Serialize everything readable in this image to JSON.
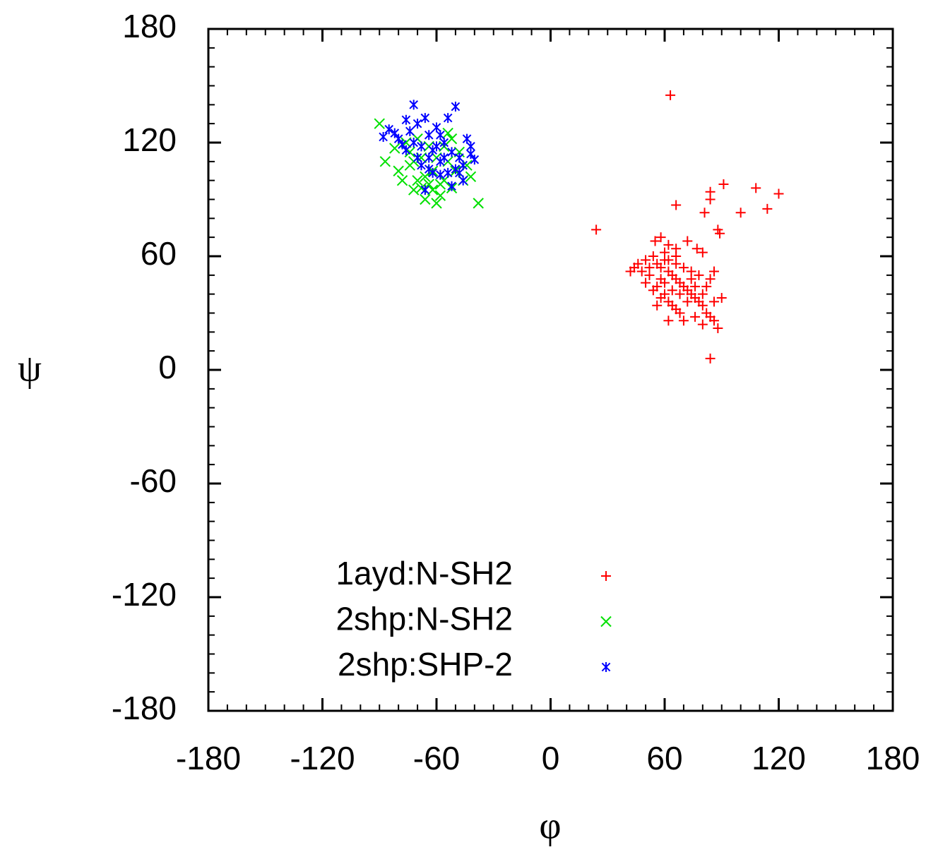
{
  "chart_data": {
    "type": "scatter",
    "x_label": "φ",
    "y_label": "ψ",
    "xlim": [
      -180,
      180
    ],
    "ylim": [
      -180,
      180
    ],
    "xticks": [
      -180,
      -120,
      -60,
      0,
      60,
      120,
      180
    ],
    "yticks": [
      -180,
      -120,
      -60,
      0,
      60,
      120,
      180
    ],
    "grid": false,
    "legend": "lower-left",
    "series": [
      {
        "name": "1ayd:N-SH2",
        "color": "#ff0000",
        "marker": "+",
        "x": [
          63,
          24,
          66,
          84,
          120,
          108,
          114,
          91,
          100,
          84,
          84,
          81,
          88,
          89,
          55,
          58,
          62,
          66,
          72,
          77,
          80,
          60,
          54,
          50,
          46,
          44,
          42,
          48,
          52,
          56,
          58,
          62,
          64,
          66,
          68,
          70,
          72,
          74,
          76,
          78,
          80,
          82,
          84,
          86,
          88,
          90,
          86,
          82,
          84,
          86,
          78,
          74,
          70,
          66,
          62,
          58,
          56,
          60,
          62,
          64,
          66,
          68,
          70,
          62,
          76,
          80,
          58,
          54,
          56,
          60,
          64,
          68,
          72,
          74,
          76,
          80,
          50,
          52,
          60,
          66
        ],
        "values": [
          145,
          74,
          87,
          6,
          93,
          96,
          85,
          98,
          83,
          94,
          90,
          83,
          74,
          72,
          68,
          70,
          66,
          64,
          68,
          64,
          62,
          62,
          60,
          58,
          56,
          54,
          52,
          52,
          50,
          56,
          54,
          52,
          50,
          48,
          46,
          44,
          42,
          40,
          38,
          36,
          34,
          30,
          28,
          26,
          22,
          38,
          36,
          44,
          48,
          52,
          50,
          52,
          54,
          56,
          58,
          48,
          44,
          40,
          36,
          34,
          32,
          30,
          26,
          26,
          28,
          24,
          38,
          42,
          34,
          46,
          42,
          40,
          36,
          48,
          44,
          40,
          46,
          54,
          58,
          60
        ]
      },
      {
        "name": "2shp:N-SH2",
        "color": "#00e000",
        "marker": "x",
        "x": [
          -90,
          -87,
          -82,
          -80,
          -78,
          -76,
          -74,
          -72,
          -70,
          -68,
          -66,
          -64,
          -62,
          -60,
          -58,
          -56,
          -54,
          -52,
          -50,
          -48,
          -46,
          -44,
          -42,
          -38,
          -64,
          -70,
          -60,
          -56,
          -74,
          -66,
          -58,
          -52,
          -62,
          -68,
          -72,
          -54
        ],
        "values": [
          130,
          110,
          117,
          105,
          100,
          120,
          108,
          95,
          100,
          112,
          90,
          98,
          105,
          88,
          92,
          100,
          110,
          122,
          105,
          115,
          100,
          108,
          102,
          88,
          118,
          122,
          112,
          118,
          115,
          102,
          98,
          96,
          95,
          96,
          110,
          125
        ]
      },
      {
        "name": "2shp:SHP-2",
        "color": "#0000ff",
        "marker": "*",
        "x": [
          -88,
          -85,
          -82,
          -80,
          -78,
          -76,
          -74,
          -72,
          -70,
          -68,
          -66,
          -64,
          -62,
          -60,
          -58,
          -56,
          -54,
          -52,
          -50,
          -48,
          -46,
          -44,
          -42,
          -40,
          -50,
          -66,
          -62,
          -58,
          -52,
          -46,
          -70,
          -68,
          -64,
          -60,
          -56,
          -54,
          -72,
          -76,
          -64,
          -58,
          -48,
          -42
        ],
        "values": [
          123,
          127,
          125,
          122,
          119,
          132,
          126,
          140,
          130,
          118,
          133,
          124,
          116,
          128,
          110,
          120,
          133,
          115,
          106,
          112,
          108,
          122,
          114,
          111,
          139,
          95,
          104,
          103,
          97,
          100,
          112,
          108,
          112,
          118,
          112,
          104,
          120,
          116,
          106,
          124,
          104,
          118
        ]
      }
    ]
  }
}
